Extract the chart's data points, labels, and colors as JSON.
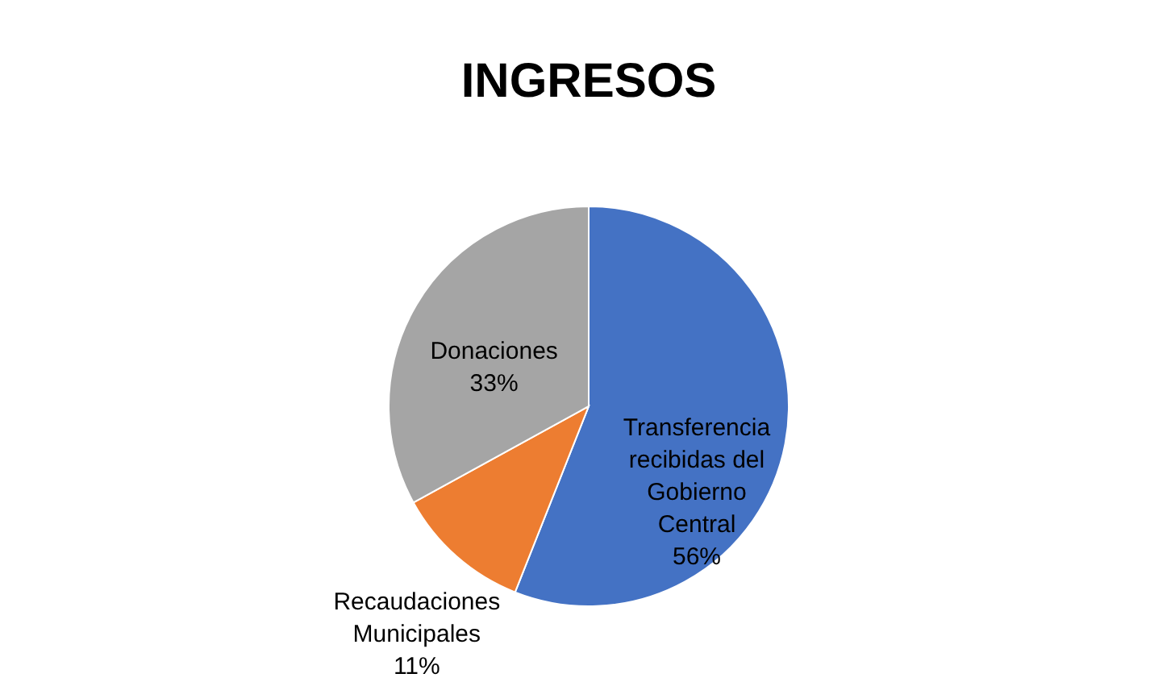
{
  "chart_data": {
    "type": "pie",
    "title": "INGRESOS",
    "categories": [
      "Transferencia recibidas del Gobierno Central",
      "Recaudaciones Municipales",
      "Donaciones"
    ],
    "values": [
      56,
      11,
      33
    ],
    "colors": [
      "#4472c4",
      "#ed7d31",
      "#a5a5a5"
    ],
    "value_labels": [
      "56%",
      "11%",
      "33%"
    ],
    "legend": false
  }
}
